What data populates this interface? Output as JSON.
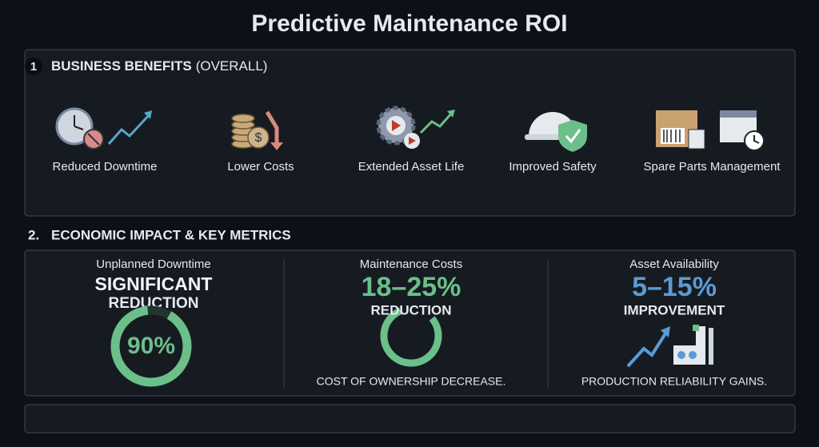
{
  "title": "Predictive Maintenance ROI",
  "benefits": {
    "number": "1",
    "heading": "BUSINESS BENEFITS",
    "qualifier": "(OVERALL)",
    "items": [
      "Reduced Downtime",
      "Lower Costs",
      "Extended Asset Life",
      "Improved Safety",
      "Spare Parts Management"
    ]
  },
  "metrics": {
    "number": "2.",
    "heading": "ECONOMIC IMPACT & KEY METRICS",
    "cards": [
      {
        "label": "Unplanned Downtime",
        "headline": "SIGNIFICANT",
        "subhead": "REDUCTION",
        "gauge": {
          "value": 90,
          "label": "90%"
        }
      },
      {
        "label": "Maintenance Costs",
        "headline": "18–25%",
        "subhead": "REDUCTION",
        "note": "COST OF OWNERSHIP DECREASE."
      },
      {
        "label": "Asset Availability",
        "headline": "5–15%",
        "subhead": "IMPROVEMENT",
        "note": "PRODUCTION RELIABILITY GAINS."
      }
    ]
  }
}
